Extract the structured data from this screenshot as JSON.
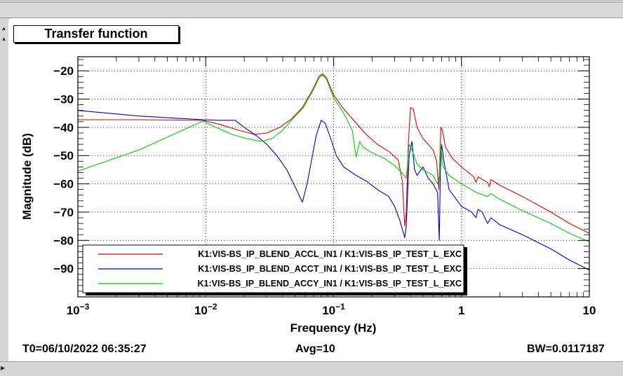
{
  "title": "Transfer function",
  "footer": {
    "t0": "T0=06/10/2022 06:35:27",
    "avg": "Avg=10",
    "bw": "BW=0.0117187"
  },
  "chart_data": {
    "type": "line",
    "title": "Transfer function",
    "xlabel": "Frequency (Hz)",
    "ylabel": "Magnitude (dB)",
    "xscale": "log",
    "xlim": [
      0.001,
      10
    ],
    "ylim": [
      -100,
      -15
    ],
    "grid": true,
    "legend_position": "bottom-left",
    "x_ticks": [
      {
        "value": 0.001,
        "base": "10",
        "exp": "−3"
      },
      {
        "value": 0.01,
        "base": "10",
        "exp": "−2"
      },
      {
        "value": 0.1,
        "base": "10",
        "exp": "−1"
      },
      {
        "value": 1,
        "base": "1",
        "exp": ""
      },
      {
        "value": 10,
        "base": "10",
        "exp": ""
      }
    ],
    "y_ticks": [
      -20,
      -30,
      -40,
      -50,
      -60,
      -70,
      -80,
      -90
    ],
    "y_tick_labels": [
      "−20",
      "−30",
      "−40",
      "−50",
      "−60",
      "−70",
      "−80",
      "−90"
    ],
    "series": [
      {
        "name": "K1:VIS-BS_IP_BLEND_ACCL_IN1 / K1:VIS-BS_IP_TEST_L_EXC",
        "color": "#e00000",
        "points": [
          [
            0.001,
            -37.3
          ],
          [
            0.003,
            -37.3
          ],
          [
            0.0095,
            -37.5
          ],
          [
            0.013,
            -39
          ],
          [
            0.018,
            -41
          ],
          [
            0.024,
            -42.5
          ],
          [
            0.03,
            -42
          ],
          [
            0.038,
            -40
          ],
          [
            0.047,
            -37
          ],
          [
            0.057,
            -33
          ],
          [
            0.068,
            -27
          ],
          [
            0.077,
            -22
          ],
          [
            0.082,
            -21
          ],
          [
            0.088,
            -22.5
          ],
          [
            0.1,
            -28.5
          ],
          [
            0.12,
            -33.5
          ],
          [
            0.15,
            -38.5
          ],
          [
            0.18,
            -42.5
          ],
          [
            0.22,
            -46
          ],
          [
            0.27,
            -48.5
          ],
          [
            0.32,
            -51.5
          ],
          [
            0.345,
            -59
          ],
          [
            0.36,
            -75
          ],
          [
            0.37,
            -70
          ],
          [
            0.385,
            -45
          ],
          [
            0.4,
            -33
          ],
          [
            0.42,
            -33.5
          ],
          [
            0.45,
            -40
          ],
          [
            0.5,
            -44
          ],
          [
            0.55,
            -46
          ],
          [
            0.6,
            -48
          ],
          [
            0.64,
            -52
          ],
          [
            0.665,
            -62
          ],
          [
            0.69,
            -40
          ],
          [
            0.71,
            -41
          ],
          [
            0.75,
            -47
          ],
          [
            0.85,
            -51
          ],
          [
            1,
            -54
          ],
          [
            1.25,
            -57.5
          ],
          [
            1.3,
            -59.5
          ],
          [
            1.35,
            -57.5
          ],
          [
            1.6,
            -59.5
          ],
          [
            1.65,
            -61
          ],
          [
            1.7,
            -58.5
          ],
          [
            2,
            -60.5
          ],
          [
            3,
            -64.5
          ],
          [
            5,
            -70
          ],
          [
            7,
            -74
          ],
          [
            10,
            -77.5
          ]
        ]
      },
      {
        "name": "K1:VIS-BS_IP_BLEND_ACCT_IN1 / K1:VIS-BS_IP_TEST_L_EXC",
        "color": "#0000d0",
        "points": [
          [
            0.001,
            -34
          ],
          [
            0.003,
            -36
          ],
          [
            0.0095,
            -37.3
          ],
          [
            0.013,
            -37.5
          ],
          [
            0.017,
            -37.5
          ],
          [
            0.02,
            -40
          ],
          [
            0.025,
            -43
          ],
          [
            0.03,
            -46
          ],
          [
            0.036,
            -50
          ],
          [
            0.043,
            -55
          ],
          [
            0.05,
            -61
          ],
          [
            0.057,
            -66.5
          ],
          [
            0.062,
            -60
          ],
          [
            0.067,
            -52
          ],
          [
            0.073,
            -43
          ],
          [
            0.08,
            -37.5
          ],
          [
            0.086,
            -38.5
          ],
          [
            0.095,
            -44
          ],
          [
            0.105,
            -50
          ],
          [
            0.12,
            -54
          ],
          [
            0.15,
            -57
          ],
          [
            0.18,
            -59
          ],
          [
            0.22,
            -62
          ],
          [
            0.27,
            -64.5
          ],
          [
            0.3,
            -68
          ],
          [
            0.33,
            -73
          ],
          [
            0.36,
            -79
          ],
          [
            0.37,
            -75
          ],
          [
            0.39,
            -50
          ],
          [
            0.41,
            -45
          ],
          [
            0.43,
            -55
          ],
          [
            0.45,
            -57
          ],
          [
            0.5,
            -54
          ],
          [
            0.55,
            -58
          ],
          [
            0.6,
            -60
          ],
          [
            0.65,
            -63
          ],
          [
            0.67,
            -80
          ],
          [
            0.685,
            -55
          ],
          [
            0.7,
            -46
          ],
          [
            0.73,
            -52
          ],
          [
            0.8,
            -62
          ],
          [
            1,
            -68
          ],
          [
            1.2,
            -70
          ],
          [
            1.3,
            -72
          ],
          [
            1.35,
            -69
          ],
          [
            1.45,
            -70
          ],
          [
            1.6,
            -74
          ],
          [
            1.7,
            -72
          ],
          [
            2,
            -74.5
          ],
          [
            3,
            -78
          ],
          [
            5,
            -83
          ],
          [
            7,
            -87
          ],
          [
            10,
            -90.5
          ]
        ]
      },
      {
        "name": "K1:VIS-BS_IP_BLEND_ACCY_IN1 / K1:VIS-BS_IP_TEST_L_EXC",
        "color": "#00cc00",
        "points": [
          [
            0.001,
            -55.5
          ],
          [
            0.003,
            -48
          ],
          [
            0.0095,
            -37.8
          ],
          [
            0.012,
            -40
          ],
          [
            0.016,
            -42.5
          ],
          [
            0.021,
            -44
          ],
          [
            0.027,
            -45
          ],
          [
            0.033,
            -44
          ],
          [
            0.04,
            -41
          ],
          [
            0.048,
            -37
          ],
          [
            0.058,
            -33
          ],
          [
            0.068,
            -27.5
          ],
          [
            0.077,
            -22.5
          ],
          [
            0.082,
            -21.5
          ],
          [
            0.088,
            -23
          ],
          [
            0.1,
            -29.5
          ],
          [
            0.12,
            -35
          ],
          [
            0.14,
            -41
          ],
          [
            0.15,
            -50.5
          ],
          [
            0.16,
            -45
          ],
          [
            0.17,
            -47
          ],
          [
            0.2,
            -49
          ],
          [
            0.25,
            -51
          ],
          [
            0.3,
            -53.5
          ],
          [
            0.34,
            -56
          ],
          [
            0.37,
            -58
          ],
          [
            0.39,
            -46
          ],
          [
            0.41,
            -48
          ],
          [
            0.45,
            -53
          ],
          [
            0.5,
            -55
          ],
          [
            0.6,
            -57
          ],
          [
            0.65,
            -60
          ],
          [
            0.67,
            -57
          ],
          [
            0.69,
            -47
          ],
          [
            0.72,
            -54
          ],
          [
            0.8,
            -57
          ],
          [
            1,
            -60
          ],
          [
            1.3,
            -63
          ],
          [
            1.6,
            -64.5
          ],
          [
            1.7,
            -63.5
          ],
          [
            2,
            -65.5
          ],
          [
            3,
            -69.5
          ],
          [
            5,
            -74
          ],
          [
            7,
            -77.5
          ],
          [
            10,
            -80.5
          ]
        ]
      }
    ]
  }
}
